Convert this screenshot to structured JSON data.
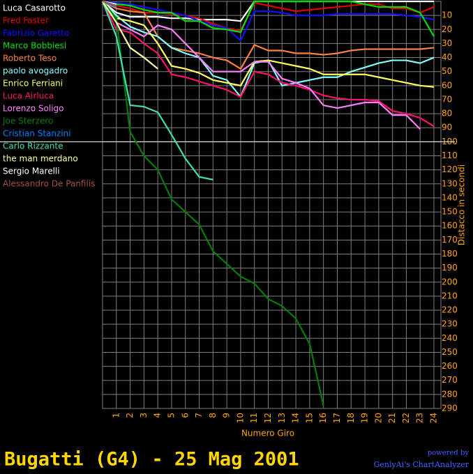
{
  "chart_data": {
    "type": "line",
    "title": "Bugatti (G4) - 25 Mag 2001",
    "x_label": "Numero Giro",
    "y_label": "Distacco in secondi",
    "credit_top": "powered by",
    "credit_bottom": "GenlyAi's ChartAnalyzer",
    "x": [
      0,
      1,
      2,
      3,
      4,
      5,
      6,
      7,
      8,
      9,
      10,
      11,
      12,
      13,
      14,
      15,
      16,
      17,
      18,
      19,
      20,
      21,
      22,
      23,
      24
    ],
    "xlim": [
      0,
      24
    ],
    "xticks": [
      1,
      2,
      3,
      4,
      5,
      6,
      7,
      8,
      9,
      10,
      11,
      12,
      13,
      14,
      15,
      16,
      17,
      18,
      19,
      20,
      21,
      22,
      23,
      24
    ],
    "ylim": [
      0,
      290
    ],
    "y_inverted": true,
    "yticks": [
      10,
      20,
      30,
      40,
      50,
      60,
      70,
      80,
      90,
      100,
      110,
      120,
      130,
      140,
      150,
      160,
      170,
      180,
      190,
      200,
      210,
      220,
      230,
      240,
      250,
      260,
      270,
      280,
      290
    ],
    "grid": true,
    "reference_line": 100,
    "series": [
      {
        "name": "Luca Casarotto",
        "color": "#ffffff",
        "values": [
          0,
          8,
          11,
          11,
          11,
          12,
          12,
          13,
          13,
          13,
          14,
          0,
          0,
          0,
          0,
          0,
          0,
          0,
          0,
          0,
          0,
          0,
          0,
          0,
          0
        ]
      },
      {
        "name": "Fred Faster",
        "color": "#e00000",
        "values": [
          0,
          3,
          5,
          8,
          8,
          9,
          10,
          12,
          16,
          19,
          21,
          1,
          3,
          5,
          7,
          6,
          5,
          4,
          3,
          2,
          2,
          5,
          5,
          8,
          4
        ]
      },
      {
        "name": "Fabrizio Garetto",
        "color": "#1010ff",
        "values": [
          0,
          1,
          2,
          4,
          6,
          8,
          10,
          14,
          17,
          19,
          28,
          7,
          7,
          8,
          10,
          10,
          10,
          9,
          9,
          9,
          9,
          9,
          10,
          11,
          13
        ]
      },
      {
        "name": "Marco Bobbiesi",
        "color": "#00e000",
        "values": [
          0,
          2,
          3,
          6,
          8,
          8,
          14,
          14,
          19,
          20,
          22,
          0,
          0,
          0,
          0,
          0,
          0,
          0,
          0,
          2,
          4,
          4,
          4,
          8,
          25
        ]
      },
      {
        "name": "Roberto Teso",
        "color": "#ff8040",
        "values": [
          0,
          5,
          7,
          8,
          25,
          33,
          35,
          37,
          40,
          42,
          48,
          31,
          35,
          35,
          37,
          37,
          38,
          37,
          35,
          34,
          34,
          34,
          34,
          34,
          33
        ]
      },
      {
        "name": "paolo avogadro",
        "color": "#80ffff",
        "values": [
          0,
          10,
          18,
          22,
          25,
          33,
          37,
          40,
          53,
          56,
          68,
          44,
          42,
          60,
          58,
          56,
          54,
          54,
          50,
          47,
          44,
          42,
          42,
          44,
          40
        ]
      },
      {
        "name": "Enrico Ferriani",
        "color": "#ffff60",
        "values": [
          0,
          12,
          14,
          17,
          30,
          46,
          48,
          51,
          56,
          58,
          60,
          43,
          42,
          44,
          46,
          48,
          52,
          52,
          52,
          52,
          54,
          56,
          58,
          60,
          61
        ]
      },
      {
        "name": "Luca Airluca",
        "color": "#ff1070",
        "values": [
          0,
          20,
          22,
          30,
          37,
          52,
          54,
          57,
          60,
          63,
          68,
          50,
          52,
          58,
          60,
          63,
          67,
          69,
          70,
          70,
          71,
          78,
          80,
          83,
          89
        ]
      },
      {
        "name": "Lorenzo Soligo",
        "color": "#ff80ff",
        "values": [
          0,
          15,
          20,
          25,
          17,
          20,
          30,
          40,
          50,
          50,
          50,
          43,
          43,
          55,
          58,
          62,
          74,
          76,
          74,
          72,
          72,
          81,
          81,
          91,
          null
        ]
      },
      {
        "name": "Joe Sterzero",
        "color": "#008000",
        "values": [
          0,
          12,
          93,
          110,
          120,
          141,
          150,
          159,
          178,
          187,
          196,
          201,
          212,
          217,
          226,
          244,
          288,
          null,
          null,
          null,
          null,
          null,
          null,
          null,
          null
        ]
      },
      {
        "name": "Cristian Stanzini",
        "color": "#0080ff",
        "values": [
          0,
          4,
          null,
          null,
          null,
          null,
          null,
          null,
          null,
          null,
          null,
          null,
          null,
          null,
          null,
          null,
          null,
          null,
          null,
          null,
          null,
          null,
          null,
          null,
          null
        ]
      },
      {
        "name": "Carlo Rizzante",
        "color": "#40e0b0",
        "values": [
          0,
          25,
          74,
          75,
          79,
          95,
          112,
          125,
          127,
          null,
          null,
          null,
          null,
          null,
          null,
          null,
          null,
          null,
          null,
          null,
          null,
          null,
          null,
          null,
          null
        ]
      },
      {
        "name": "the man merdano",
        "color": "#ffffa0",
        "values": [
          0,
          15,
          33,
          40,
          48,
          null,
          null,
          null,
          null,
          null,
          null,
          null,
          null,
          null,
          null,
          null,
          null,
          null,
          null,
          null,
          null,
          null,
          null,
          null,
          null
        ]
      },
      {
        "name": "Sergio Marelli",
        "color": "#ffffff",
        "values": [
          0,
          2,
          null,
          null,
          null,
          null,
          null,
          null,
          null,
          null,
          null,
          null,
          null,
          null,
          null,
          null,
          null,
          null,
          null,
          null,
          null,
          null,
          null,
          null,
          null
        ]
      },
      {
        "name": "Alessandro De Panfilis",
        "color": "#a05040",
        "values": [
          0,
          3,
          null,
          null,
          null,
          null,
          null,
          null,
          null,
          null,
          null,
          null,
          null,
          null,
          null,
          null,
          null,
          null,
          null,
          null,
          null,
          null,
          null,
          null,
          null
        ]
      }
    ]
  }
}
